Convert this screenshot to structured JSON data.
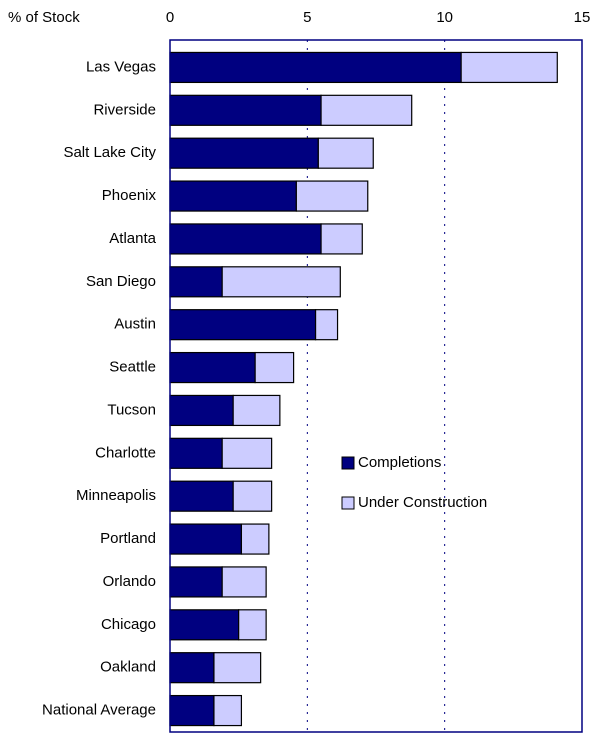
{
  "chart_data": {
    "type": "barh_stacked",
    "axis_label": "% of Stock",
    "categories": [
      "Las Vegas",
      "Riverside",
      "Salt Lake City",
      "Phoenix",
      "Atlanta",
      "San Diego",
      "Austin",
      "Seattle",
      "Tucson",
      "Charlotte",
      "Minneapolis",
      "Portland",
      "Orlando",
      "Chicago",
      "Oakland",
      "National Average"
    ],
    "series": [
      {
        "name": "Completions",
        "color": "#000080",
        "values": [
          10.6,
          5.5,
          5.4,
          4.6,
          5.5,
          1.9,
          5.3,
          3.1,
          2.3,
          1.9,
          2.3,
          2.6,
          1.9,
          2.5,
          1.6,
          1.6
        ]
      },
      {
        "name": "Under Construction",
        "color": "#ccccff",
        "values": [
          3.5,
          3.3,
          2.0,
          2.6,
          1.5,
          4.3,
          0.8,
          1.4,
          1.7,
          1.8,
          1.4,
          1.0,
          1.6,
          1.0,
          1.7,
          1.0
        ]
      }
    ],
    "xlim": [
      0,
      15
    ],
    "xticks": [
      0,
      5,
      10,
      15
    ],
    "grid": true
  }
}
